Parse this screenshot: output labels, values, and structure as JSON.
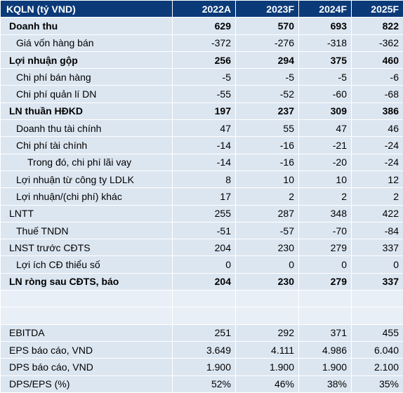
{
  "header": {
    "title": "KQLN (tỷ VND)",
    "columns": [
      "2022A",
      "2023F",
      "2024F",
      "2025F"
    ]
  },
  "rows": [
    {
      "label": "Doanh thu",
      "values": [
        629,
        570,
        693,
        822
      ]
    },
    {
      "label": "Giá vốn hàng bán",
      "values": [
        -372,
        -276,
        -318,
        -362
      ]
    },
    {
      "label": "Lợi nhuận gộp",
      "values": [
        256,
        294,
        375,
        460
      ]
    },
    {
      "label": "Chi phí bán hàng",
      "values": [
        -5,
        -5,
        -5,
        -6
      ]
    },
    {
      "label": "Chi phí quản lí DN",
      "values": [
        -55,
        -52,
        -60,
        -68
      ]
    },
    {
      "label": "LN thuần HĐKD",
      "values": [
        197,
        237,
        309,
        386
      ]
    },
    {
      "label": "Doanh thu tài chính",
      "values": [
        47,
        55,
        47,
        46
      ]
    },
    {
      "label": "Chi phí tài chính",
      "values": [
        -14,
        -16,
        -21,
        -24
      ]
    },
    {
      "label": "Trong đó, chi phí lãi vay",
      "values": [
        -14,
        -16,
        -20,
        -24
      ]
    },
    {
      "label": "Lợi nhuận từ công ty LDLK",
      "values": [
        8,
        10,
        10,
        12
      ]
    },
    {
      "label": "Lợi nhuận/(chi phí) khác",
      "values": [
        17,
        2,
        2,
        2
      ]
    },
    {
      "label": "LNTT",
      "values": [
        255,
        287,
        348,
        422
      ]
    },
    {
      "label": "Thuế TNDN",
      "values": [
        -51,
        -57,
        -70,
        -84
      ]
    },
    {
      "label": "LNST trước CĐTS",
      "values": [
        204,
        230,
        279,
        337
      ]
    },
    {
      "label": "Lợi ích CĐ thiểu số",
      "values": [
        0,
        0,
        0,
        0
      ]
    },
    {
      "label": "LN ròng sau CĐTS, báo",
      "values": [
        204,
        230,
        279,
        337
      ]
    },
    {
      "label": "EBITDA",
      "values": [
        251,
        292,
        371,
        455
      ]
    },
    {
      "label": "EPS báo cáo, VND",
      "values": [
        "3.649",
        "4.111",
        "4.986",
        "6.040"
      ]
    },
    {
      "label": "DPS  báo cáo, VND",
      "values": [
        "1.900",
        "1.900",
        "1.900",
        "2.100"
      ]
    },
    {
      "label": "DPS/EPS (%)",
      "values": [
        "52%",
        "46%",
        "38%",
        "35%"
      ]
    }
  ]
}
